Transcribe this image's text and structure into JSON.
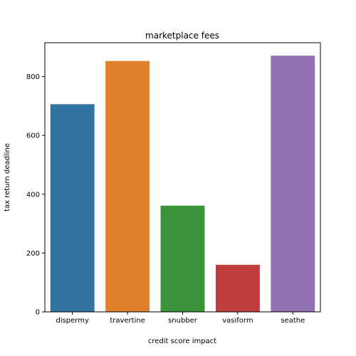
{
  "chart_data": {
    "type": "bar",
    "title": "marketplace fees",
    "xlabel": "credit score impact",
    "ylabel": "tax return deadline",
    "categories": [
      "dispermy",
      "travertine",
      "snubber",
      "vasiform",
      "seathe"
    ],
    "values": [
      706,
      853,
      361,
      160,
      871
    ],
    "ylim": [
      0,
      915
    ],
    "yticks": [
      0,
      200,
      400,
      600,
      800
    ],
    "colors": [
      "#3274a1",
      "#e1812c",
      "#3a923a",
      "#c03d3e",
      "#9372b2"
    ],
    "grid": false,
    "legend": "none"
  }
}
